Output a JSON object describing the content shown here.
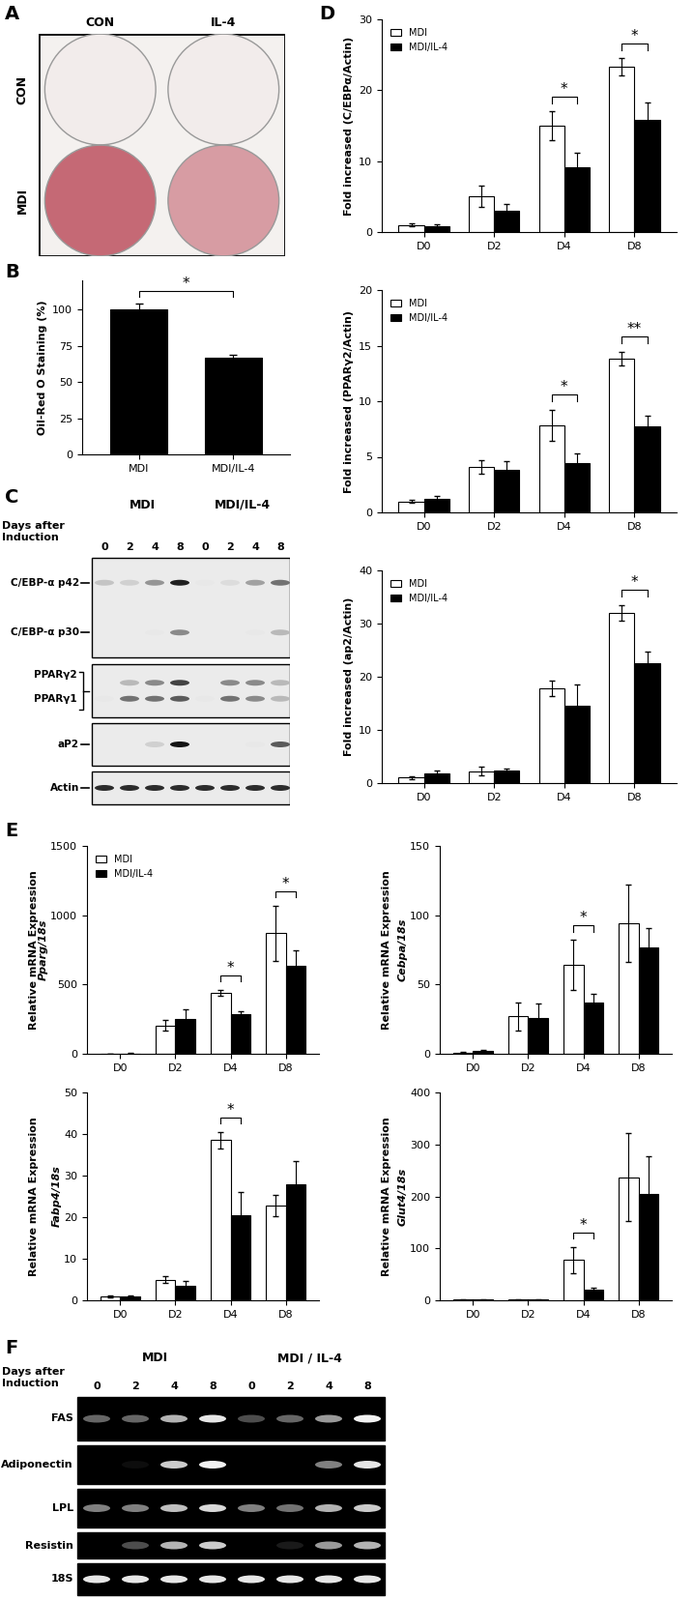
{
  "panel_labels": [
    "A",
    "B",
    "C",
    "D",
    "E",
    "F"
  ],
  "staining_image": {
    "column_labels": [
      "CON",
      "IL-4"
    ],
    "row_labels": [
      "CON",
      "MDI"
    ],
    "stain": [
      [
        0.0,
        0.0
      ],
      [
        0.9,
        0.55
      ]
    ]
  },
  "chart_data": [
    {
      "type": "bar",
      "categories": [
        "MDI",
        "MDI/IL-4"
      ],
      "values": [
        100,
        67
      ],
      "errors": [
        4,
        1.5
      ],
      "color": "#000000",
      "y_label": "Oil-Red O Staining (%)",
      "ylim": [
        0,
        120
      ],
      "yticks": [
        0,
        25,
        50,
        75,
        100
      ],
      "grid": false,
      "annotations": [
        {
          "text": "*",
          "categories": [
            "MDI",
            "MDI/IL-4"
          ]
        }
      ]
    },
    {
      "type": "bar",
      "categories": [
        "D0",
        "D2",
        "D4",
        "D8"
      ],
      "y_label": "Fold increased (C/EBPα/Actin)",
      "ylim": [
        0,
        30
      ],
      "yticks": [
        0,
        10,
        20,
        30
      ],
      "grid": false,
      "legend": "upper left",
      "series": [
        {
          "name": "MDI",
          "color": "#ffffff",
          "values": [
            1,
            5,
            15,
            23.3
          ],
          "errors": [
            0.2,
            1.5,
            2,
            1.2
          ]
        },
        {
          "name": "MDI/IL-4",
          "color": "#000000",
          "values": [
            0.8,
            3,
            9.2,
            15.8
          ],
          "errors": [
            0.3,
            1,
            2,
            2.5
          ]
        }
      ],
      "annotations": [
        {
          "text": "*",
          "category": "D4"
        },
        {
          "text": "*",
          "category": "D8"
        }
      ]
    },
    {
      "type": "bar",
      "categories": [
        "D0",
        "D2",
        "D4",
        "D8"
      ],
      "y_label": "Fold increased (PPARγ2/Actin)",
      "ylim": [
        0,
        20
      ],
      "yticks": [
        0,
        5,
        10,
        15,
        20
      ],
      "grid": false,
      "legend": "upper left",
      "series": [
        {
          "name": "MDI",
          "color": "#ffffff",
          "values": [
            1,
            4.1,
            7.8,
            13.8
          ],
          "errors": [
            0.1,
            0.6,
            1.4,
            0.6
          ]
        },
        {
          "name": "MDI/IL-4",
          "color": "#000000",
          "values": [
            1.2,
            3.8,
            4.4,
            7.7
          ],
          "errors": [
            0.3,
            0.8,
            0.9,
            1.0
          ]
        }
      ],
      "annotations": [
        {
          "text": "*",
          "category": "D4"
        },
        {
          "text": "**",
          "category": "D8"
        }
      ]
    },
    {
      "type": "bar",
      "categories": [
        "D0",
        "D2",
        "D4",
        "D8"
      ],
      "y_label": "Fold increased (ap2/Actin)",
      "ylim": [
        0,
        40
      ],
      "yticks": [
        0,
        10,
        20,
        30,
        40
      ],
      "grid": false,
      "legend": "upper left",
      "series": [
        {
          "name": "MDI",
          "color": "#ffffff",
          "values": [
            1,
            2.2,
            17.8,
            32
          ],
          "errors": [
            0.3,
            0.8,
            1.5,
            1.5
          ]
        },
        {
          "name": "MDI/IL-4",
          "color": "#000000",
          "values": [
            1.8,
            2.4,
            14.6,
            22.5
          ],
          "errors": [
            0.5,
            0.4,
            4,
            2.2
          ]
        }
      ],
      "annotations": [
        {
          "text": "*",
          "category": "D8"
        }
      ]
    },
    {
      "type": "bar",
      "categories": [
        "D0",
        "D2",
        "D4",
        "D8"
      ],
      "y_label": [
        "Relative mRNA Expression",
        "Pparg/18s"
      ],
      "ylim": [
        0,
        1500
      ],
      "yticks": [
        0,
        500,
        1000,
        1500
      ],
      "grid": false,
      "legend": "upper left",
      "series": [
        {
          "name": "MDI",
          "color": "#ffffff",
          "values": [
            2,
            205,
            440,
            870
          ],
          "errors": [
            1,
            40,
            20,
            200
          ]
        },
        {
          "name": "MDI/IL-4",
          "color": "#000000",
          "values": [
            3,
            250,
            285,
            635
          ],
          "errors": [
            1,
            70,
            25,
            110
          ]
        }
      ],
      "annotations": [
        {
          "text": "*",
          "category": "D4"
        },
        {
          "text": "*",
          "category": "D8"
        }
      ]
    },
    {
      "type": "bar",
      "categories": [
        "D0",
        "D2",
        "D4",
        "D8"
      ],
      "y_label": [
        "Relative mRNA Expression",
        "Cebpa/18s"
      ],
      "ylim": [
        0,
        150
      ],
      "yticks": [
        0,
        50,
        100,
        150
      ],
      "grid": false,
      "series": [
        {
          "name": "MDI",
          "color": "#ffffff",
          "values": [
            1,
            27,
            64,
            94
          ],
          "errors": [
            0.5,
            10,
            18,
            28
          ]
        },
        {
          "name": "MDI/IL-4",
          "color": "#000000",
          "values": [
            2,
            26,
            37,
            77
          ],
          "errors": [
            0.5,
            10,
            6,
            14
          ]
        }
      ],
      "annotations": [
        {
          "text": "*",
          "category": "D4"
        }
      ]
    },
    {
      "type": "bar",
      "categories": [
        "D0",
        "D2",
        "D4",
        "D8"
      ],
      "y_label": [
        "Relative mRNA Expression",
        "Fabp4/18s"
      ],
      "ylim": [
        0,
        50
      ],
      "yticks": [
        0,
        10,
        20,
        30,
        40,
        50
      ],
      "grid": false,
      "series": [
        {
          "name": "MDI",
          "color": "#ffffff",
          "values": [
            1,
            5,
            38.5,
            22.8
          ],
          "errors": [
            0.2,
            0.8,
            2,
            2.5
          ]
        },
        {
          "name": "MDI/IL-4",
          "color": "#000000",
          "values": [
            1,
            3.6,
            20.5,
            28
          ],
          "errors": [
            0.2,
            1,
            5.5,
            5.5
          ]
        }
      ],
      "annotations": [
        {
          "text": "*",
          "category": "D4"
        }
      ]
    },
    {
      "type": "bar",
      "categories": [
        "D0",
        "D2",
        "D4",
        "D8"
      ],
      "y_label": [
        "Relative mRNA Expression",
        "Glut4/18s"
      ],
      "ylim": [
        0,
        400
      ],
      "yticks": [
        0,
        100,
        200,
        300,
        400
      ],
      "grid": false,
      "series": [
        {
          "name": "MDI",
          "color": "#ffffff",
          "values": [
            1,
            1,
            78,
            237
          ],
          "errors": [
            0.3,
            0.5,
            25,
            85
          ]
        },
        {
          "name": "MDI/IL-4",
          "color": "#000000",
          "values": [
            1,
            1,
            20,
            205
          ],
          "errors": [
            0.3,
            0.3,
            5,
            72
          ]
        }
      ],
      "annotations": [
        {
          "text": "*",
          "category": "D4"
        }
      ]
    }
  ],
  "western_blot": {
    "header": "Days after\nInduction",
    "groups": [
      "MDI",
      "MDI/IL-4"
    ],
    "days": [
      "0",
      "2",
      "4",
      "8"
    ],
    "strips": [
      {
        "rows": [
          {
            "label": "C/EBP-α p42",
            "intensity": [
              0.25,
              0.2,
              0.45,
              0.95,
              0.1,
              0.15,
              0.4,
              0.6
            ]
          },
          {
            "label": "C/EBP-α p30",
            "intensity": [
              0,
              0,
              0.1,
              0.5,
              0,
              0,
              0.1,
              0.3
            ]
          }
        ]
      },
      {
        "rows": [
          {
            "label": "PPARγ2",
            "intensity": [
              0,
              0.3,
              0.5,
              0.8,
              0,
              0.5,
              0.5,
              0.3
            ]
          },
          {
            "label": "PPARγ1",
            "intensity": [
              0.1,
              0.6,
              0.6,
              0.7,
              0.1,
              0.6,
              0.5,
              0.3
            ]
          }
        ]
      },
      {
        "rows": [
          {
            "label": "aP2",
            "intensity": [
              0,
              0,
              0.2,
              1.0,
              0,
              0,
              0.1,
              0.7
            ]
          }
        ]
      },
      {
        "rows": [
          {
            "label": "Actin",
            "intensity": [
              0.9,
              0.9,
              0.9,
              0.9,
              0.9,
              0.9,
              0.9,
              0.9
            ]
          }
        ]
      }
    ]
  },
  "rt_pcr_gel": {
    "header": "Days after\nInduction",
    "groups": [
      "MDI",
      "MDI / IL-4"
    ],
    "days": [
      "0",
      "2",
      "4",
      "8"
    ],
    "rows": [
      {
        "label": "FAS",
        "intensity": [
          0.4,
          0.4,
          0.7,
          0.9,
          0.3,
          0.4,
          0.6,
          0.95
        ]
      },
      {
        "label": "Adiponectin",
        "intensity": [
          0,
          0.05,
          0.8,
          0.95,
          0,
          0,
          0.5,
          0.9
        ]
      },
      {
        "label": "LPL",
        "intensity": [
          0.5,
          0.5,
          0.75,
          0.85,
          0.5,
          0.45,
          0.7,
          0.8
        ]
      },
      {
        "label": "Resistin",
        "intensity": [
          0,
          0.3,
          0.7,
          0.8,
          0,
          0.1,
          0.6,
          0.7
        ]
      },
      {
        "label": "18S",
        "intensity": [
          0.9,
          0.9,
          0.9,
          0.9,
          0.9,
          0.9,
          0.9,
          0.9
        ]
      }
    ]
  }
}
